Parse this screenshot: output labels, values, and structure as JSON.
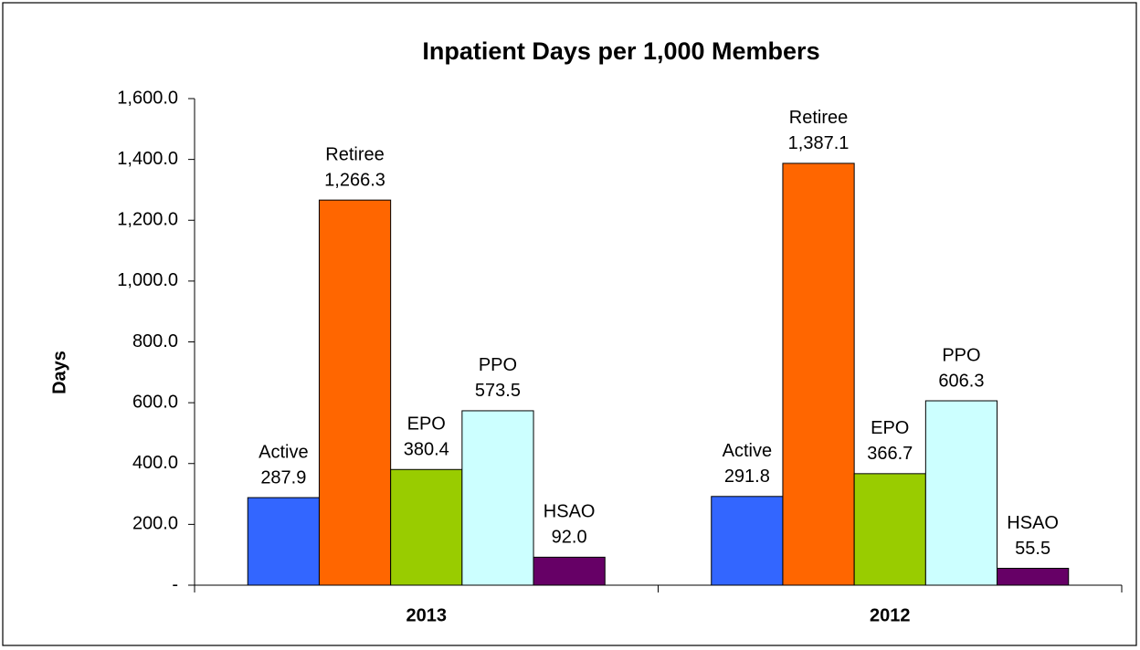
{
  "chart_data": {
    "type": "bar",
    "title": "Inpatient Days per 1,000 Members",
    "y_label": "Days",
    "categories": [
      "2013",
      "2012"
    ],
    "series": [
      {
        "name": "Active",
        "color": "#3366ff",
        "values": [
          287.9,
          291.8
        ],
        "value_labels": [
          "287.9",
          "291.8"
        ]
      },
      {
        "name": "Retiree",
        "color": "#ff6600",
        "values": [
          1266.3,
          1387.1
        ],
        "value_labels": [
          "1,266.3",
          "1,387.1"
        ]
      },
      {
        "name": "EPO",
        "color": "#99cc00",
        "values": [
          380.4,
          366.7
        ],
        "value_labels": [
          "380.4",
          "366.7"
        ]
      },
      {
        "name": "PPO",
        "color": "#ccffff",
        "values": [
          573.5,
          606.3
        ],
        "value_labels": [
          "573.5",
          "606.3"
        ]
      },
      {
        "name": "HSAO",
        "color": "#660066",
        "values": [
          92.0,
          55.5
        ],
        "value_labels": [
          "92.0",
          "55.5"
        ]
      }
    ],
    "ylim": [
      0,
      1600
    ],
    "yticks": [
      {
        "value": 0,
        "label": "-"
      },
      {
        "value": 200,
        "label": "200.0"
      },
      {
        "value": 400,
        "label": "400.0"
      },
      {
        "value": 600,
        "label": "600.0"
      },
      {
        "value": 800,
        "label": "800.0"
      },
      {
        "value": 1000,
        "label": "1,000.0"
      },
      {
        "value": 1200,
        "label": "1,200.0"
      },
      {
        "value": 1400,
        "label": "1,400.0"
      },
      {
        "value": 1600,
        "label": "1,600.0"
      }
    ],
    "grid": false
  }
}
